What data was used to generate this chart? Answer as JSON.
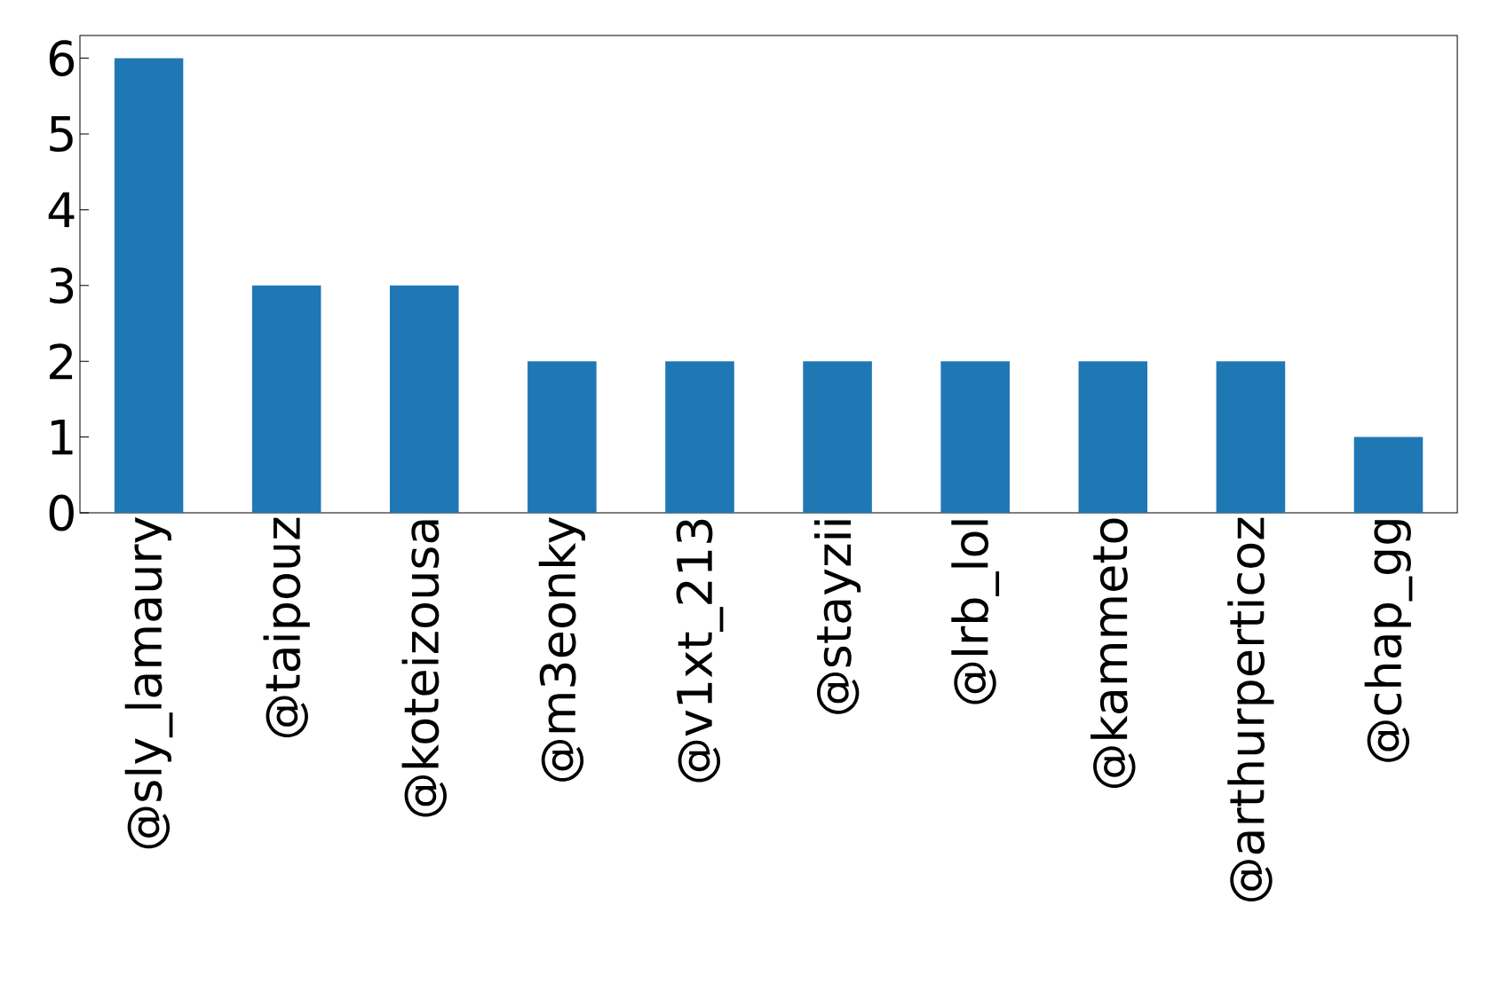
{
  "chart_data": {
    "type": "bar",
    "categories": [
      "@sly_lamaury",
      "@taipouz",
      "@koteizousa",
      "@m3eonky",
      "@v1xt_213",
      "@stayzii",
      "@lrb_lol",
      "@kammeto",
      "@arthurperticoz",
      "@chap_gg"
    ],
    "values": [
      6,
      3,
      3,
      2,
      2,
      2,
      2,
      2,
      2,
      1
    ],
    "color": "#1f77b4",
    "ylim": [
      0,
      6.3
    ],
    "yticks": [
      0,
      1,
      2,
      3,
      4,
      5,
      6
    ],
    "grid": false
  }
}
